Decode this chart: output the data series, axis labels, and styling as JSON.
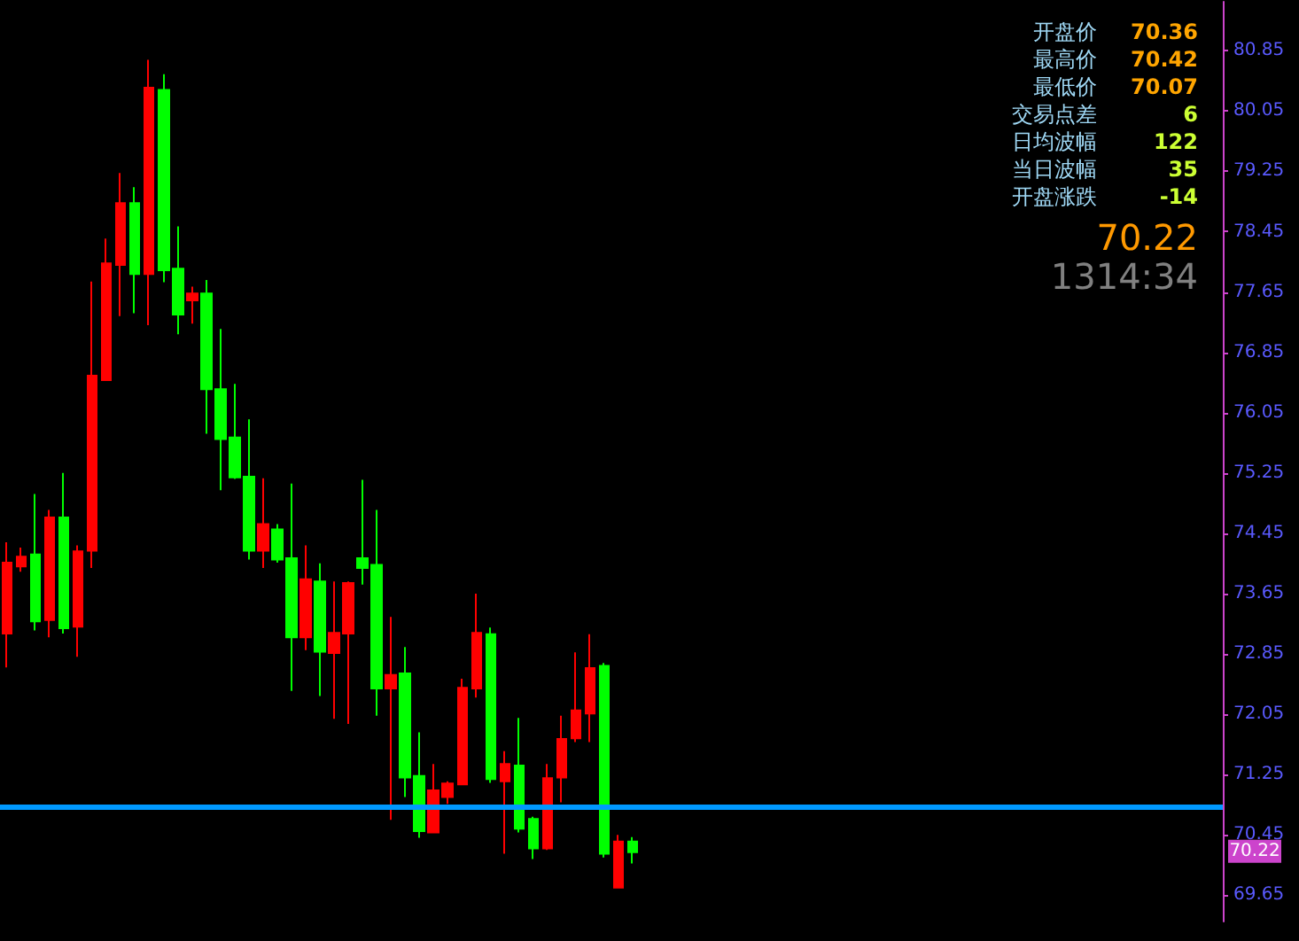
{
  "chart_data": {
    "type": "candlestick",
    "tick_labels": "y",
    "grid": false,
    "categories": [
      null,
      null,
      null,
      null,
      null,
      null,
      null,
      null,
      null,
      null,
      null,
      null,
      null,
      null,
      null,
      null,
      null,
      null,
      null,
      null,
      null,
      null,
      null,
      null,
      null,
      null,
      null,
      null,
      null,
      null,
      null,
      null,
      null,
      null,
      null,
      null,
      null,
      null,
      null,
      null,
      null,
      null,
      null,
      null,
      null,
      null,
      null,
      null,
      null,
      null,
      null,
      null,
      null,
      null,
      null,
      null,
      null,
      null,
      null,
      null,
      null,
      null,
      null,
      null,
      null,
      null,
      null,
      null,
      null,
      null,
      null,
      null,
      null,
      null,
      null,
      null,
      null,
      null,
      null,
      null,
      null,
      null,
      null,
      null,
      null,
      null
    ],
    "ohlc": [
      [
        73.12,
        74.33,
        72.67,
        74.06
      ],
      [
        74.01,
        74.26,
        73.94,
        74.14
      ],
      [
        74.17,
        74.97,
        73.16,
        73.28
      ],
      [
        73.3,
        74.76,
        73.07,
        74.66
      ],
      [
        74.66,
        75.25,
        73.12,
        73.19
      ],
      [
        73.21,
        74.29,
        72.81,
        74.21
      ],
      [
        74.22,
        77.79,
        73.99,
        76.54
      ],
      [
        76.48,
        78.36,
        76.48,
        78.03
      ],
      [
        78.01,
        79.23,
        77.33,
        78.83
      ],
      [
        78.83,
        79.04,
        77.37,
        77.89
      ],
      [
        77.89,
        80.73,
        77.21,
        80.36
      ],
      [
        80.33,
        80.54,
        77.78,
        77.94
      ],
      [
        77.96,
        78.52,
        77.09,
        77.35
      ],
      [
        77.54,
        77.72,
        77.23,
        77.63
      ],
      [
        77.63,
        77.81,
        75.77,
        76.36
      ],
      [
        76.36,
        77.16,
        75.02,
        75.7
      ],
      [
        75.72,
        76.43,
        75.17,
        75.19
      ],
      [
        75.2,
        75.96,
        74.1,
        74.22
      ],
      [
        74.22,
        75.18,
        73.99,
        74.57
      ],
      [
        74.5,
        74.57,
        74.06,
        74.1
      ],
      [
        74.12,
        75.11,
        72.36,
        73.07
      ],
      [
        73.07,
        74.29,
        72.9,
        73.84
      ],
      [
        73.81,
        74.05,
        72.29,
        72.88
      ],
      [
        72.86,
        73.81,
        71.99,
        73.13
      ],
      [
        73.12,
        73.81,
        71.92,
        73.79
      ],
      [
        74.12,
        75.16,
        73.77,
        73.99
      ],
      [
        74.03,
        74.76,
        72.03,
        72.39
      ],
      [
        72.39,
        73.34,
        70.65,
        72.57
      ],
      [
        72.59,
        72.94,
        70.95,
        71.21
      ],
      [
        71.23,
        71.81,
        70.41,
        70.5
      ],
      [
        70.48,
        71.39,
        70.48,
        71.04
      ],
      [
        70.95,
        71.16,
        70.86,
        71.13
      ],
      [
        71.12,
        72.52,
        71.12,
        72.4
      ],
      [
        72.39,
        73.65,
        72.27,
        73.13
      ],
      [
        73.11,
        73.2,
        71.14,
        71.19
      ],
      [
        71.16,
        71.56,
        70.2,
        71.39
      ],
      [
        71.37,
        72.0,
        70.48,
        70.53
      ],
      [
        70.66,
        70.69,
        70.13,
        70.27
      ],
      [
        70.27,
        71.39,
        70.25,
        71.2
      ],
      [
        71.21,
        72.03,
        70.88,
        71.72
      ],
      [
        71.73,
        72.87,
        71.68,
        72.1
      ],
      [
        72.06,
        73.11,
        71.68,
        72.66
      ],
      [
        72.69,
        72.73,
        70.15,
        70.2
      ],
      [
        69.75,
        70.45,
        69.75,
        70.36
      ],
      [
        70.36,
        70.42,
        70.07,
        70.22
      ],
      null,
      null,
      null,
      null,
      null,
      null,
      null,
      null,
      null,
      null,
      null,
      null,
      null,
      null,
      null,
      null,
      null,
      null,
      null,
      null,
      null,
      null,
      null,
      null,
      null,
      null,
      null,
      null,
      null,
      null,
      null,
      null,
      null,
      null,
      null,
      null,
      null,
      null,
      null,
      null,
      null
    ],
    "colors": [
      "#ff0000",
      "#ff0000",
      "#00ff00",
      "#ff0000",
      "#00ff00",
      "#ff0000",
      "#ff0000",
      "#ff0000",
      "#ff0000",
      "#00ff00",
      "#ff0000",
      "#00ff00",
      "#00ff00",
      "#ff0000",
      "#00ff00",
      "#00ff00",
      "#00ff00",
      "#00ff00",
      "#ff0000",
      "#00ff00",
      "#00ff00",
      "#ff0000",
      "#00ff00",
      "#ff0000",
      "#ff0000",
      "#00ff00",
      "#00ff00",
      "#ff0000",
      "#00ff00",
      "#00ff00",
      "#ff0000",
      "#ff0000",
      "#ff0000",
      "#ff0000",
      "#00ff00",
      "#ff0000",
      "#00ff00",
      "#00ff00",
      "#ff0000",
      "#ff0000",
      "#ff0000",
      "#ff0000",
      "#00ff00",
      "#ff0000",
      "#00ff00",
      null,
      null,
      null,
      null,
      null,
      null,
      null,
      null,
      null,
      null,
      null,
      null,
      null,
      null,
      null,
      null,
      null,
      null,
      null,
      null,
      null,
      null,
      null,
      null,
      null,
      null,
      null,
      null,
      null,
      null,
      null,
      null,
      null,
      null,
      null,
      null,
      null,
      null,
      null,
      null,
      null
    ],
    "ylim": [
      69.3,
      81.5
    ],
    "yticks": [
      69.65,
      70.45,
      71.25,
      72.05,
      72.85,
      73.65,
      74.45,
      75.25,
      76.05,
      76.85,
      77.65,
      78.45,
      79.25,
      80.05,
      80.85
    ],
    "ref_lines": [
      {
        "axis": "y",
        "value": 70.83,
        "color": "#0099ff"
      }
    ],
    "annotations": [
      "开盘价",
      "70.36",
      "最高价",
      "70.42",
      "最低价",
      "70.07",
      "交易点差",
      "6",
      "日均波幅",
      "122",
      "当日波幅",
      "35",
      "开盘涨跌",
      "-14",
      "70.22",
      "1314:34",
      {
        "text": "70.22",
        "y": 70.22
      }
    ]
  }
}
